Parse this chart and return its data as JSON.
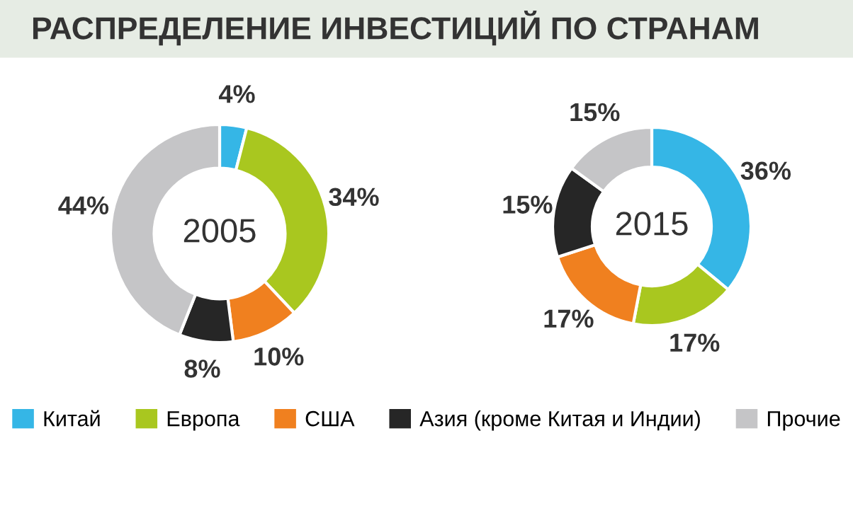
{
  "chart_data": [
    {
      "type": "donut",
      "title": "РАСПРЕДЕЛЕНИЕ ИНВЕСТИЦИЙ ПО СТРАНАМ",
      "annotations": [
        "2005"
      ],
      "categories": [
        "Китай",
        "Европа",
        "США",
        "Азия (кроме Китая и Индии)",
        "Прочие"
      ],
      "values": [
        4,
        34,
        10,
        8,
        44
      ],
      "value_labels": [
        "4%",
        "34%",
        "10%",
        "8%",
        "44%"
      ],
      "colors": [
        "#35b6e6",
        "#a9c71f",
        "#f0801f",
        "#262626",
        "#c5c5c7"
      ],
      "legend": "bottom"
    },
    {
      "type": "donut",
      "annotations": [
        "2015"
      ],
      "categories": [
        null,
        null,
        null,
        null,
        null
      ],
      "values": [
        36,
        17,
        17,
        15,
        15
      ],
      "value_labels": [
        "36%",
        "17%",
        "17%",
        "15%",
        "15%"
      ],
      "colors": [
        "#35b6e6",
        "#a9c71f",
        "#f0801f",
        "#262626",
        "#c5c5c7"
      ]
    }
  ]
}
